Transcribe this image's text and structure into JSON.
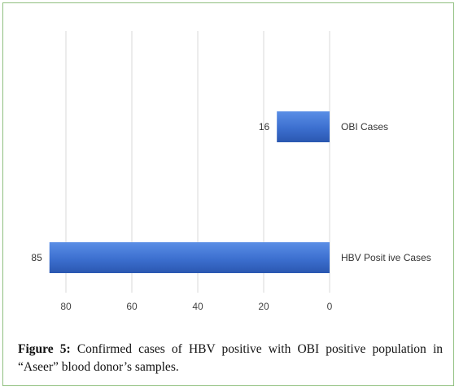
{
  "caption": {
    "label": "Figure 5:",
    "text": "Confirmed cases of HBV positive with OBI positive population in “Aseer”  blood donor’s samples."
  },
  "colors": {
    "bar": "#3c6fcf",
    "bar_light": "#5a8ee6",
    "bar_dark": "#2a57b0",
    "grid": "#d9d9d9",
    "frame": "#8fbf7f"
  },
  "chart_data": {
    "type": "bar",
    "orientation": "horizontal",
    "x_reversed": true,
    "categories": [
      "OBI Cases",
      "HBV Positive Cases"
    ],
    "values": [
      16,
      85
    ],
    "category_labels": [
      "OBI Cases",
      "HBV Posit ive Cases"
    ],
    "xlim": [
      0,
      85
    ],
    "xticks": [
      0,
      20,
      40,
      60,
      80
    ],
    "xtick_labels": [
      "0",
      "20",
      "40",
      "60",
      "80"
    ],
    "data_labels": [
      "16",
      "85"
    ],
    "grid": true,
    "legend": "none",
    "title": "",
    "xlabel": "",
    "ylabel": ""
  }
}
